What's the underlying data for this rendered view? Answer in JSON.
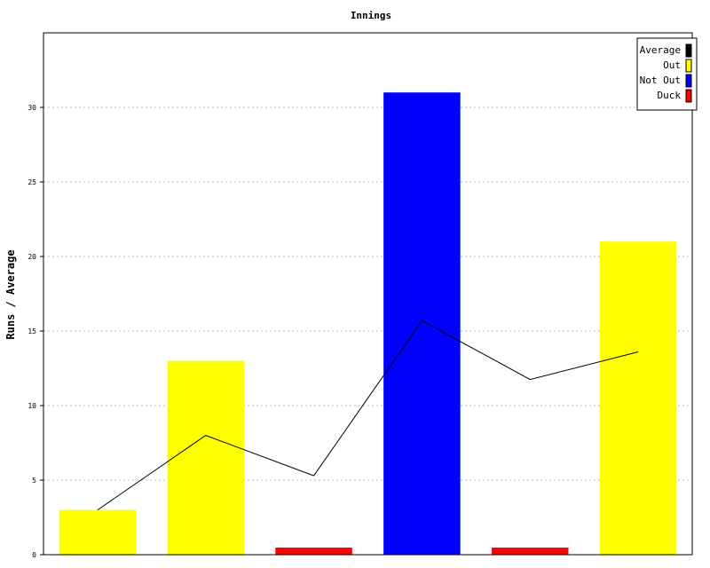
{
  "chart_data": {
    "type": "bar",
    "title": "Innings",
    "xlabel": "",
    "ylabel": "Runs / Average",
    "ylim": [
      0,
      35
    ],
    "yticks": [
      0,
      5,
      10,
      15,
      20,
      25,
      30
    ],
    "grid": true,
    "legend_position": "top-right",
    "legend": [
      {
        "label": "Average",
        "color": "#000000"
      },
      {
        "label": "Out",
        "color": "#ffff00"
      },
      {
        "label": "Not Out",
        "color": "#0000ff"
      },
      {
        "label": "Duck",
        "color": "#ff0000"
      }
    ],
    "bars": [
      {
        "value": 3,
        "status": "Out",
        "color": "#ffff00"
      },
      {
        "value": 13,
        "status": "Out",
        "color": "#ffff00"
      },
      {
        "value": 0,
        "status": "Duck",
        "color": "#ff0000"
      },
      {
        "value": 31,
        "status": "Not Out",
        "color": "#0000ff"
      },
      {
        "value": 0,
        "status": "Duck",
        "color": "#ff0000"
      },
      {
        "value": 21,
        "status": "Out",
        "color": "#ffff00"
      }
    ],
    "average_line": {
      "name": "Average",
      "color": "#000000",
      "values": [
        3,
        8,
        5.3,
        15.7,
        11.75,
        13.6
      ]
    }
  }
}
